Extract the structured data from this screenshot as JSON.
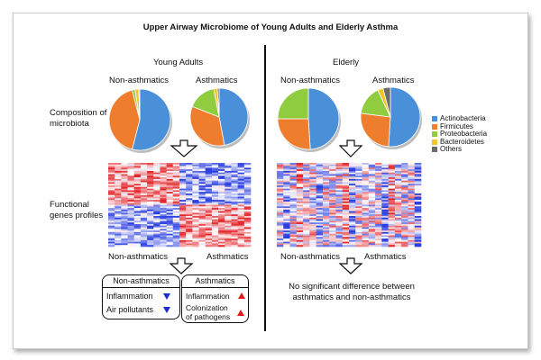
{
  "title": "Upper Airway Microbiome of Young Adults and Elderly Asthma",
  "sections": {
    "young": "Young Adults",
    "elderly": "Elderly"
  },
  "groups": {
    "young_non": "Non-asthmatics",
    "young_asth": "Asthmatics",
    "eld_non": "Non-asthmatics",
    "eld_asth": "Asthmatics"
  },
  "row_labels": {
    "composition": "Composition of microbiota",
    "functional": "Functional genes profiles"
  },
  "legend": [
    {
      "label": "Actinobacteria",
      "color": "#4a90d9"
    },
    {
      "label": "Firmicutes",
      "color": "#ee7d2e"
    },
    {
      "label": "Proteobacteria",
      "color": "#8fcc3f"
    },
    {
      "label": "Bacteroidetes",
      "color": "#f4c531"
    },
    {
      "label": "Others",
      "color": "#6b6b6b"
    }
  ],
  "chart_data": {
    "type": "pie",
    "categories": [
      "Actinobacteria",
      "Firmicutes",
      "Proteobacteria",
      "Bacteroidetes",
      "Others"
    ],
    "series": [
      {
        "name": "Young Adults Non-asthmatics",
        "values": [
          54,
          42,
          1.5,
          2,
          0.5
        ]
      },
      {
        "name": "Young Adults Asthmatics",
        "values": [
          47,
          34,
          16,
          2,
          1
        ]
      },
      {
        "name": "Elderly Non-asthmatics",
        "values": [
          49,
          26,
          25,
          0,
          0
        ]
      },
      {
        "name": "Elderly Asthmatics",
        "values": [
          51,
          26,
          16,
          3,
          4
        ]
      }
    ]
  },
  "heatmap_labels": {
    "young_non": "Non-asthmatics",
    "young_asth": "Asthmatics",
    "eld_non": "Non-asthmatics",
    "eld_asth": "Asthmatics"
  },
  "box_non": {
    "header": "Non-asthmatics",
    "items": [
      "Inflammation",
      "Air pollutants"
    ]
  },
  "box_asth": {
    "header": "Asthmatics",
    "items": [
      "Inflammation",
      "Colonization of pathogens"
    ]
  },
  "conclusion": "No significant difference between asthmatics and non-asthmatics",
  "colors": {
    "heat_red": "#e4252a",
    "heat_blue": "#2a3fe0",
    "arrow_down": "#1a2bd6",
    "arrow_up": "#e11b1b"
  }
}
